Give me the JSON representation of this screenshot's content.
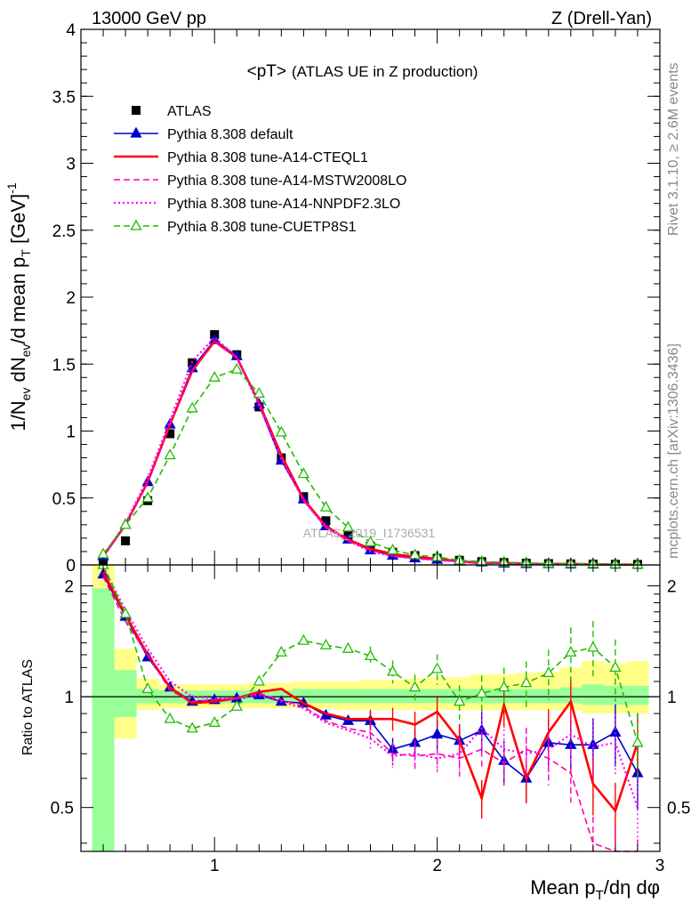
{
  "header": {
    "left_label": "13000 GeV pp",
    "right_label": "Z (Drell-Yan)"
  },
  "side_labels": {
    "rivet": "Rivet 3.1.10, ≥ 2.6M events",
    "mcplots": "mcplots.cern.ch [arXiv:1306.3436]"
  },
  "watermark": "ATLAS_2019_I1736531",
  "chart_data": {
    "type": "line",
    "title": "<pT>",
    "subtitle": "(ATLAS UE in Z production)",
    "ylabel_main": "1/N_ev dN_ev/d mean p_T [GeV]^-1",
    "ylabel_ratio": "Ratio to ATLAS",
    "xlabel": "Mean p_T/dη dφ",
    "xlim": [
      0.4,
      3.0
    ],
    "ylim_main": [
      0,
      4.0
    ],
    "ylim_ratio": [
      0.38,
      2.28
    ],
    "log_ratio": true,
    "x": [
      0.5,
      0.6,
      0.7,
      0.8,
      0.9,
      1.0,
      1.1,
      1.2,
      1.3,
      1.4,
      1.5,
      1.6,
      1.7,
      1.8,
      1.9,
      2.0,
      2.1,
      2.2,
      2.3,
      2.4,
      2.5,
      2.6,
      2.7,
      2.8,
      2.9
    ],
    "xticks_main": [
      "1",
      "2",
      "3"
    ],
    "xticks_ratio": [
      "1",
      "2",
      "3"
    ],
    "yticks_main": [
      "0",
      "0.5",
      "1",
      "1.5",
      "2",
      "2.5",
      "3",
      "3.5",
      "4"
    ],
    "yticks_ratio": [
      "0.5",
      "1",
      "2"
    ],
    "series": [
      {
        "name": "ATLAS",
        "color": "#000000",
        "style": "markers",
        "values": [
          0.03,
          0.18,
          0.48,
          0.98,
          1.51,
          1.72,
          1.57,
          1.18,
          0.8,
          0.51,
          0.33,
          0.22,
          0.14,
          0.095,
          0.07,
          0.05,
          0.035,
          0.025,
          0.018,
          0.013,
          0.01,
          0.008,
          0.006,
          0.005,
          0.004
        ],
        "ratio": [
          1,
          1,
          1,
          1,
          1,
          1,
          1,
          1,
          1,
          1,
          1,
          1,
          1,
          1,
          1,
          1,
          1,
          1,
          1,
          1,
          1,
          1,
          1,
          1,
          1
        ]
      },
      {
        "name": "Pythia 8.308 default",
        "color": "#0000cc",
        "style": "solid-triangle",
        "values": [
          0.065,
          0.3,
          0.62,
          1.05,
          1.47,
          1.68,
          1.56,
          1.2,
          0.78,
          0.49,
          0.29,
          0.19,
          0.11,
          0.07,
          0.05,
          0.04,
          0.027,
          0.02,
          0.012,
          0.008,
          0.0075,
          0.006,
          0.0045,
          0.004,
          0.0025
        ],
        "ratio": [
          2.15,
          1.65,
          1.28,
          1.06,
          0.97,
          0.98,
          0.99,
          1.01,
          0.97,
          0.96,
          0.89,
          0.86,
          0.86,
          0.72,
          0.75,
          0.79,
          0.76,
          0.81,
          0.67,
          0.6,
          0.75,
          0.74,
          0.74,
          0.8,
          0.62
        ]
      },
      {
        "name": "Pythia 8.308 tune-A14-CTEQL1",
        "color": "#ff0000",
        "style": "solid",
        "values": [
          0.065,
          0.3,
          0.62,
          1.05,
          1.45,
          1.67,
          1.55,
          1.21,
          0.82,
          0.49,
          0.29,
          0.19,
          0.12,
          0.082,
          0.06,
          0.045,
          0.027,
          0.013,
          0.017,
          0.008,
          0.008,
          0.0078,
          0.0035,
          0.0025,
          0.003
        ],
        "ratio": [
          2.18,
          1.67,
          1.3,
          1.06,
          0.96,
          0.97,
          0.99,
          1.03,
          1.05,
          0.96,
          0.9,
          0.87,
          0.87,
          0.87,
          0.84,
          0.91,
          0.76,
          0.53,
          0.95,
          0.6,
          0.8,
          0.97,
          0.58,
          0.49,
          0.75
        ]
      },
      {
        "name": "Pythia 8.308 tune-A14-MSTW2008LO",
        "color": "#ff00aa",
        "style": "dashed",
        "values": [
          0.065,
          0.3,
          0.62,
          1.05,
          1.45,
          1.67,
          1.55,
          1.21,
          0.8,
          0.48,
          0.28,
          0.18,
          0.11,
          0.065,
          0.048,
          0.035,
          0.024,
          0.018,
          0.012,
          0.009,
          0.007,
          0.005,
          0.0025,
          0.002,
          0.0015
        ],
        "ratio": [
          2.12,
          1.6,
          1.3,
          1.04,
          0.97,
          0.98,
          0.99,
          1.02,
          0.98,
          0.94,
          0.86,
          0.82,
          0.8,
          0.7,
          0.69,
          0.7,
          0.68,
          0.72,
          0.66,
          0.72,
          0.68,
          0.62,
          0.4,
          0.37,
          0.34
        ]
      },
      {
        "name": "Pythia 8.308 tune-A14-NNPDF2.3LO",
        "color": "#ff00ff",
        "style": "dotted",
        "values": [
          0.065,
          0.31,
          0.65,
          1.08,
          1.52,
          1.7,
          1.55,
          1.19,
          0.79,
          0.48,
          0.28,
          0.18,
          0.1,
          0.065,
          0.048,
          0.035,
          0.025,
          0.02,
          0.013,
          0.009,
          0.007,
          0.006,
          0.0045,
          0.0038,
          0.002
        ],
        "ratio": [
          2.25,
          1.72,
          1.35,
          1.1,
          1.0,
          0.99,
          0.99,
          1.01,
          0.97,
          0.93,
          0.85,
          0.81,
          0.77,
          0.69,
          0.7,
          0.68,
          0.7,
          0.82,
          0.72,
          0.7,
          0.72,
          0.79,
          0.73,
          0.75,
          0.5
        ]
      },
      {
        "name": "Pythia 8.308 tune-CUETP8S1",
        "color": "#22bb00",
        "style": "dashed-open-triangle",
        "values": [
          0.08,
          0.3,
          0.5,
          0.82,
          1.17,
          1.4,
          1.46,
          1.28,
          0.99,
          0.68,
          0.43,
          0.28,
          0.17,
          0.11,
          0.074,
          0.06,
          0.034,
          0.025,
          0.019,
          0.014,
          0.011,
          0.01,
          0.008,
          0.006,
          0.003
        ],
        "ratio": [
          2.5,
          1.68,
          1.05,
          0.87,
          0.82,
          0.85,
          0.94,
          1.1,
          1.32,
          1.42,
          1.38,
          1.35,
          1.29,
          1.17,
          1.06,
          1.19,
          0.97,
          1.02,
          1.06,
          1.09,
          1.16,
          1.32,
          1.36,
          1.2,
          0.75
        ]
      }
    ],
    "uncertainty_bands": {
      "yellow": {
        "color": "#ffff88",
        "lo": [
          0.38,
          0.77,
          0.92,
          0.93,
          0.93,
          0.93,
          0.93,
          0.93,
          0.93,
          0.93,
          0.93,
          0.92,
          0.92,
          0.92,
          0.92,
          0.92,
          0.92,
          0.92,
          0.92,
          0.92,
          0.92,
          0.92,
          0.9,
          0.9,
          0.9
        ],
        "hi": [
          2.28,
          1.35,
          1.12,
          1.08,
          1.08,
          1.08,
          1.08,
          1.09,
          1.09,
          1.1,
          1.1,
          1.1,
          1.11,
          1.11,
          1.12,
          1.13,
          1.13,
          1.15,
          1.15,
          1.16,
          1.17,
          1.2,
          1.25,
          1.23,
          1.25
        ]
      },
      "green": {
        "color": "#99ff99",
        "lo": [
          0.38,
          0.88,
          0.96,
          0.96,
          0.96,
          0.96,
          0.96,
          0.96,
          0.96,
          0.96,
          0.96,
          0.96,
          0.96,
          0.96,
          0.96,
          0.96,
          0.96,
          0.96,
          0.96,
          0.96,
          0.96,
          0.96,
          0.95,
          0.95,
          0.95
        ],
        "hi": [
          1.97,
          1.18,
          1.05,
          1.04,
          1.04,
          1.04,
          1.04,
          1.04,
          1.04,
          1.05,
          1.05,
          1.05,
          1.05,
          1.05,
          1.05,
          1.05,
          1.05,
          1.05,
          1.05,
          1.05,
          1.05,
          1.06,
          1.08,
          1.07,
          1.07
        ]
      }
    }
  }
}
